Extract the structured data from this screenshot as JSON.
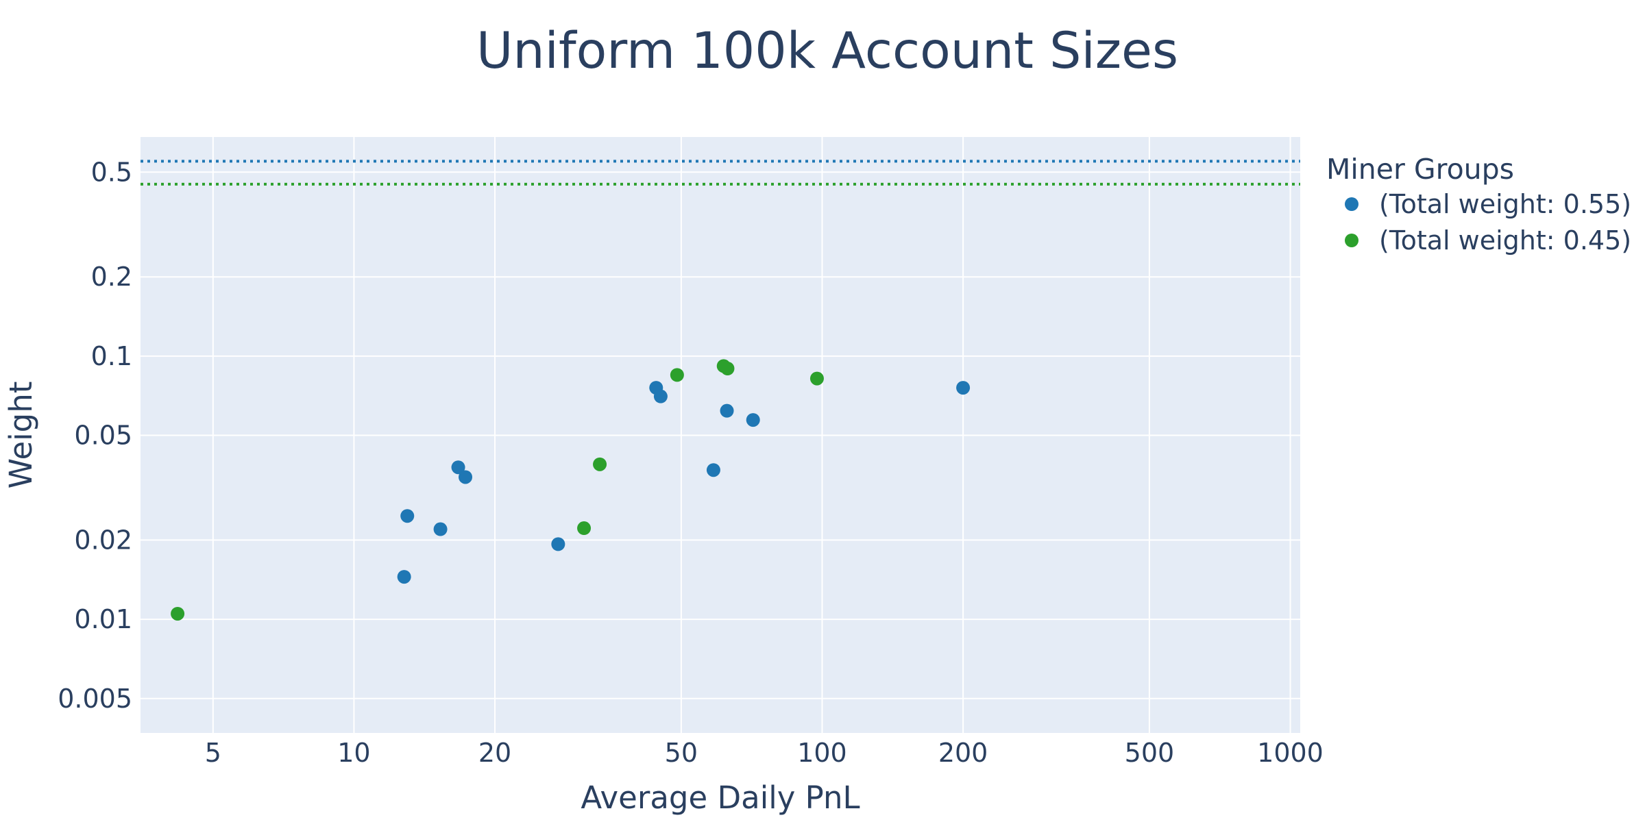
{
  "chart_data": {
    "type": "scatter",
    "title": "Uniform 100k Account Sizes",
    "xlabel": "Average Daily PnL",
    "ylabel": "Weight",
    "x_scale": "log",
    "y_scale": "log",
    "xlim": [
      3.5,
      1050
    ],
    "ylim": [
      0.0037,
      0.68
    ],
    "x_ticks": [
      5,
      10,
      20,
      50,
      100,
      200,
      500,
      1000
    ],
    "x_tick_labels": [
      "5",
      "10",
      "20",
      "50",
      "100",
      "200",
      "500",
      "1000"
    ],
    "y_ticks": [
      0.005,
      0.01,
      0.02,
      0.05,
      0.1,
      0.2,
      0.5
    ],
    "y_tick_labels": [
      "0.005",
      "0.01",
      "0.02",
      "0.05",
      "0.1",
      "0.2",
      "0.5"
    ],
    "grid": true,
    "legend": {
      "title": "Miner Groups",
      "placement": "right-top"
    },
    "series": [
      {
        "name": "(Total weight: 0.55)",
        "color": "#1f77b4",
        "reference_line": 0.55,
        "points": [
          {
            "x": 12.8,
            "y": 0.0145
          },
          {
            "x": 13.0,
            "y": 0.0247
          },
          {
            "x": 15.3,
            "y": 0.022
          },
          {
            "x": 16.7,
            "y": 0.0378
          },
          {
            "x": 17.3,
            "y": 0.0347
          },
          {
            "x": 27.3,
            "y": 0.0193
          },
          {
            "x": 44.2,
            "y": 0.0758
          },
          {
            "x": 45.2,
            "y": 0.0703
          },
          {
            "x": 58.6,
            "y": 0.0369
          },
          {
            "x": 62.6,
            "y": 0.062
          },
          {
            "x": 71.2,
            "y": 0.0572
          },
          {
            "x": 200.0,
            "y": 0.0758
          }
        ]
      },
      {
        "name": "(Total weight: 0.45)",
        "color": "#2ca02c",
        "reference_line": 0.45,
        "points": [
          {
            "x": 4.2,
            "y": 0.0105
          },
          {
            "x": 31.0,
            "y": 0.0222
          },
          {
            "x": 33.5,
            "y": 0.0388
          },
          {
            "x": 49.0,
            "y": 0.0848
          },
          {
            "x": 61.6,
            "y": 0.0917
          },
          {
            "x": 62.8,
            "y": 0.0897
          },
          {
            "x": 97.5,
            "y": 0.0822
          }
        ]
      }
    ]
  }
}
